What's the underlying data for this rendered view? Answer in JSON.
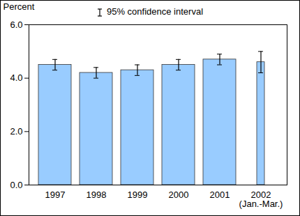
{
  "chart_data": {
    "type": "bar",
    "y_label": "Percent",
    "annotations": [
      "95% confidence interval"
    ],
    "categories": [
      "1997",
      "1998",
      "1999",
      "2000",
      "2001",
      "2002\n(Jan.-Mar.)"
    ],
    "values": [
      4.5,
      4.2,
      4.3,
      4.5,
      4.7,
      4.6
    ],
    "ci_low": [
      4.3,
      4.0,
      4.1,
      4.3,
      4.5,
      4.2
    ],
    "ci_high": [
      4.7,
      4.4,
      4.5,
      4.7,
      4.9,
      5.0
    ],
    "color": "#99ccff",
    "ylim": [
      0,
      6
    ],
    "yticks": [
      0,
      2,
      4,
      6
    ],
    "grid": false
  }
}
